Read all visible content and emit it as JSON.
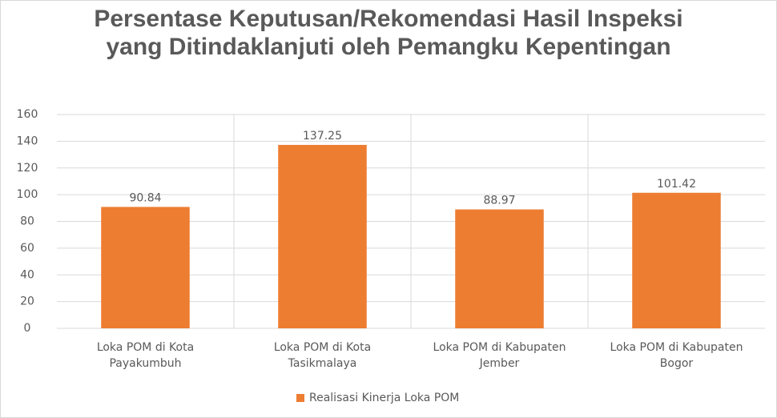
{
  "chart_data": {
    "type": "bar",
    "title": "Persentase Keputusan/Rekomendasi Hasil Inspeksi yang Ditindaklanjuti oleh Pemangku Kepentingan",
    "categories": [
      "Loka POM di Kota Payakumbuh",
      "Loka POM di Kota Tasikmalaya",
      "Loka POM di Kabupaten Jember",
      "Loka POM di Kabupaten Bogor"
    ],
    "series": [
      {
        "name": "Realisasi Kinerja Loka POM",
        "color": "#ed7d31",
        "values": [
          90.84,
          137.25,
          88.97,
          101.42
        ]
      }
    ],
    "ylim": [
      0,
      160
    ],
    "yticks": [
      0,
      20,
      40,
      60,
      80,
      100,
      120,
      140,
      160
    ],
    "grid": true,
    "legend": "bottom"
  }
}
